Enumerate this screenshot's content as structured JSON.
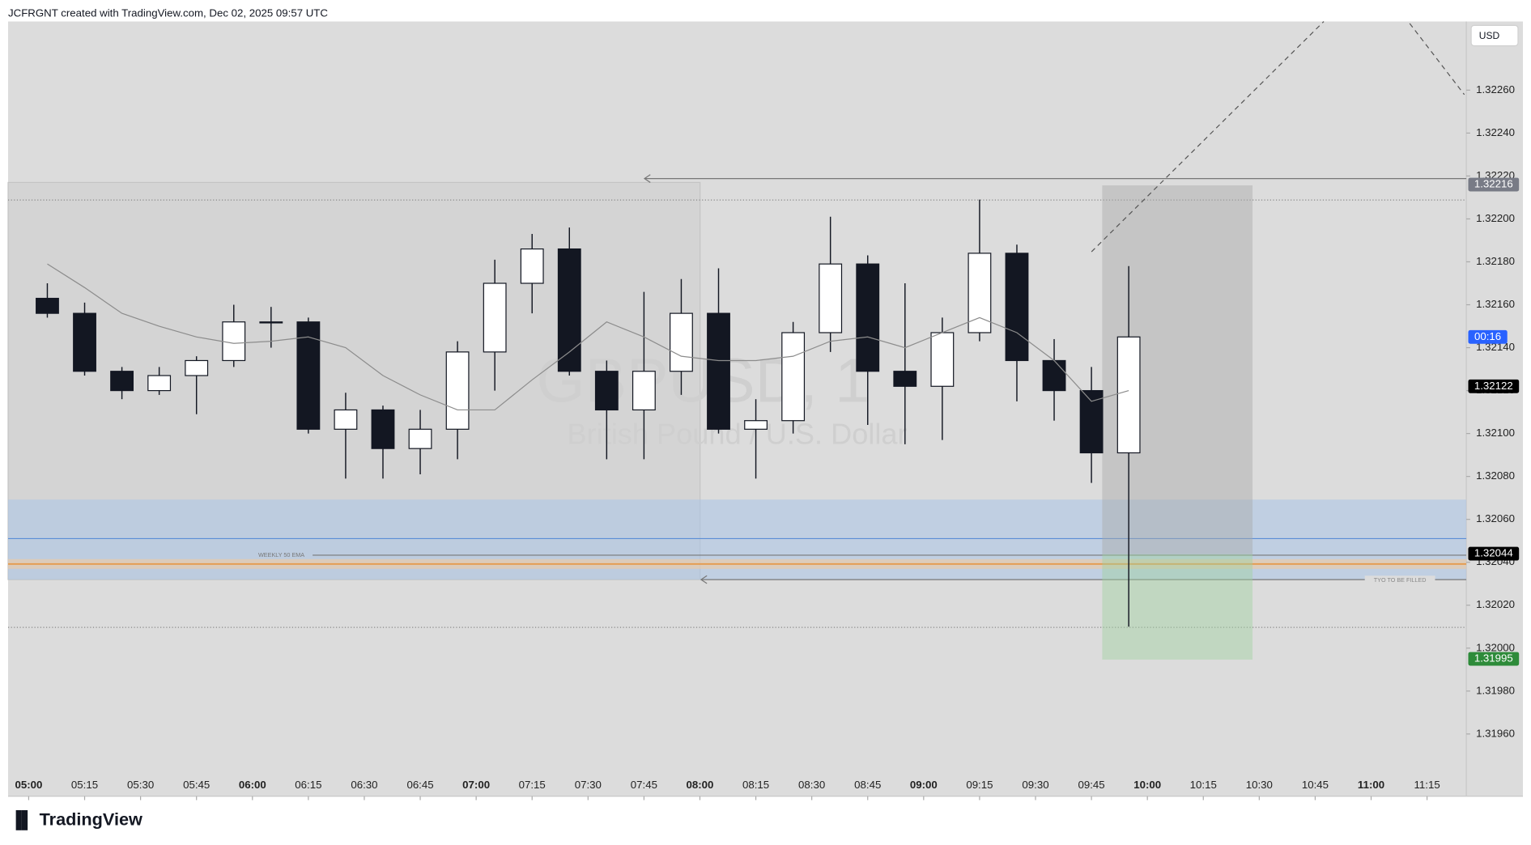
{
  "chart_data": {
    "type": "candlestick",
    "header": "JCFRGNT created with TradingView.com, Dec 02, 2025 09:57 UTC",
    "symbol": "GBPUSD, 1",
    "description": "British Pound / U.S. Dollar",
    "currency": "USD",
    "brand": "TradingView",
    "countdown": "00:16",
    "ema_label": "WEEKLY 50 EMA",
    "zone_label": "TYO TO BE  FILLED",
    "x": [
      "05:00",
      "05:10",
      "05:20",
      "05:30",
      "05:40",
      "05:50",
      "06:00",
      "06:10",
      "06:20",
      "06:30",
      "06:40",
      "06:50",
      "07:00",
      "07:10",
      "07:20",
      "07:30",
      "07:40",
      "07:50",
      "08:00",
      "08:10",
      "08:20",
      "08:30",
      "08:40",
      "08:50",
      "09:00",
      "09:10",
      "09:20",
      "09:30",
      "09:40",
      "09:50"
    ],
    "open": [
      1.32163,
      1.32156,
      1.32129,
      1.3212,
      1.32127,
      1.32134,
      1.32152,
      1.32152,
      1.32102,
      1.32111,
      1.32093,
      1.32102,
      1.32138,
      1.3217,
      1.32186,
      1.32129,
      1.32111,
      1.32129,
      1.32156,
      1.32102,
      1.32106,
      1.32147,
      1.32179,
      1.32129,
      1.32122,
      1.32147,
      1.32184,
      1.32134,
      1.3212,
      1.32091
    ],
    "high": [
      1.3217,
      1.32161,
      1.32131,
      1.32131,
      1.32136,
      1.3216,
      1.32159,
      1.32154,
      1.32119,
      1.32113,
      1.32111,
      1.32143,
      1.32181,
      1.32193,
      1.32196,
      1.32134,
      1.32166,
      1.32172,
      1.32177,
      1.32116,
      1.32152,
      1.32201,
      1.32183,
      1.3217,
      1.32154,
      1.32209,
      1.32188,
      1.32144,
      1.32131,
      1.32178
    ],
    "low": [
      1.32154,
      1.32127,
      1.32116,
      1.32118,
      1.32109,
      1.32131,
      1.3214,
      1.321,
      1.32079,
      1.32079,
      1.32081,
      1.32088,
      1.3212,
      1.32156,
      1.32127,
      1.32088,
      1.32088,
      1.32118,
      1.321,
      1.32079,
      1.321,
      1.32138,
      1.32104,
      1.32095,
      1.32097,
      1.32143,
      1.32115,
      1.32106,
      1.32077,
      1.3201
    ],
    "close": [
      1.32156,
      1.32129,
      1.3212,
      1.32127,
      1.32134,
      1.32152,
      1.32152,
      1.32102,
      1.32111,
      1.32093,
      1.32102,
      1.32138,
      1.3217,
      1.32186,
      1.32129,
      1.32111,
      1.32129,
      1.32156,
      1.32102,
      1.32106,
      1.32147,
      1.32179,
      1.32129,
      1.32122,
      1.32147,
      1.32184,
      1.32134,
      1.3212,
      1.32091,
      1.32145
    ],
    "ma": [
      1.32179,
      1.32168,
      1.32156,
      1.3215,
      1.32145,
      1.32142,
      1.32143,
      1.32145,
      1.3214,
      1.32127,
      1.32118,
      1.32111,
      1.32111,
      1.32125,
      1.32138,
      1.32152,
      1.32145,
      1.32136,
      1.32134,
      1.32134,
      1.32136,
      1.32143,
      1.32145,
      1.3214,
      1.32147,
      1.32154,
      1.32147,
      1.32134,
      1.32115,
      1.3212
    ],
    "up_color": "#ffffff",
    "down_color": "#131722",
    "ma_color": "#8c8c8c",
    "xlim": [
      "04:55",
      "11:25"
    ],
    "xticks": [
      "05:00",
      "05:15",
      "05:30",
      "05:45",
      "06:00",
      "06:15",
      "06:30",
      "06:45",
      "07:00",
      "07:15",
      "07:30",
      "07:45",
      "08:00",
      "08:15",
      "08:30",
      "08:45",
      "09:00",
      "09:15",
      "09:30",
      "09:45",
      "10:00",
      "10:15",
      "10:30",
      "10:45",
      "11:00",
      "11:15"
    ],
    "ylim": [
      1.31931,
      1.32292
    ],
    "yticks": [
      {
        "value": 1.3196,
        "label": "1.31960"
      },
      {
        "value": 1.3198,
        "label": "1.31980"
      },
      {
        "value": 1.32,
        "label": "1.32000"
      },
      {
        "value": 1.3202,
        "label": "1.32020"
      },
      {
        "value": 1.3204,
        "label": "1.32040"
      },
      {
        "value": 1.3206,
        "label": "1.32060"
      },
      {
        "value": 1.3208,
        "label": "1.32080"
      },
      {
        "value": 1.321,
        "label": "1.32100"
      },
      {
        "value": 1.3212,
        "label": "1.32120"
      },
      {
        "value": 1.3214,
        "label": "1.32140"
      },
      {
        "value": 1.3216,
        "label": "1.32160"
      },
      {
        "value": 1.3218,
        "label": "1.32180"
      },
      {
        "value": 1.322,
        "label": "1.32200"
      },
      {
        "value": 1.3222,
        "label": "1.32220"
      },
      {
        "value": 1.3224,
        "label": "1.32240"
      },
      {
        "value": 1.3226,
        "label": "1.32260"
      }
    ],
    "price_tags": [
      {
        "value": 1.32216,
        "color": "#787b86"
      },
      {
        "value": 1.32122,
        "color": "#000000"
      },
      {
        "value": 1.32044,
        "color": "#000000"
      },
      {
        "value": 1.31995,
        "color": "#2e8b3a"
      }
    ],
    "countdown_color": "#2962ff"
  }
}
